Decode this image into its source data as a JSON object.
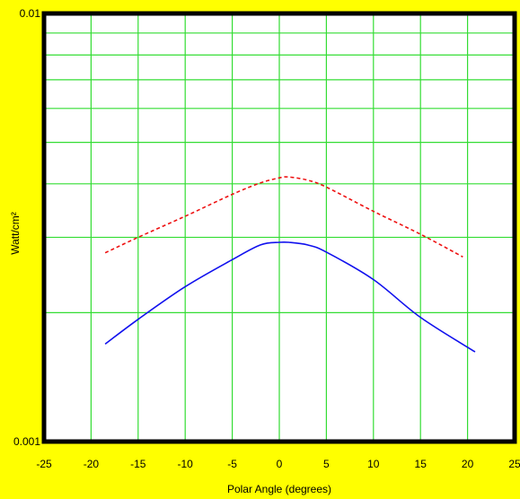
{
  "chart_data": {
    "type": "line",
    "title": "",
    "xlabel": "Polar Angle (degrees)",
    "ylabel": "Watt/cm²",
    "x_scale": "linear",
    "y_scale": "log",
    "xlim": [
      -25,
      25
    ],
    "ylim": [
      0.001,
      0.01
    ],
    "x_ticks": [
      "-25",
      "-20",
      "-15",
      "-10",
      "-5",
      "0",
      "5",
      "10",
      "15",
      "20",
      "25"
    ],
    "y_tick_labels": [
      "0.01",
      "0.001"
    ],
    "grid": true,
    "grid_color": "#33dd33",
    "background_color": "#ffff00",
    "plot_background": "#ffffff",
    "series": [
      {
        "style": "dashed",
        "color": "#ee1111",
        "points": [
          [
            -18.5,
            0.00276
          ],
          [
            -15,
            0.003
          ],
          [
            -10,
            0.00336
          ],
          [
            -5,
            0.00378
          ],
          [
            -2,
            0.00402
          ],
          [
            0,
            0.00413
          ],
          [
            1,
            0.00415
          ],
          [
            3,
            0.00408
          ],
          [
            5,
            0.00393
          ],
          [
            10,
            0.00345
          ],
          [
            15,
            0.00305
          ],
          [
            19.5,
            0.0027
          ]
        ]
      },
      {
        "style": "solid",
        "color": "#1111ee",
        "points": [
          [
            -18.5,
            0.00169
          ],
          [
            -15,
            0.00193
          ],
          [
            -10,
            0.0023
          ],
          [
            -5,
            0.00266
          ],
          [
            -2,
            0.00288
          ],
          [
            0,
            0.00292
          ],
          [
            1,
            0.00292
          ],
          [
            3,
            0.00288
          ],
          [
            5,
            0.00277
          ],
          [
            10,
            0.00239
          ],
          [
            15,
            0.00195
          ],
          [
            20.8,
            0.00162
          ]
        ]
      }
    ]
  }
}
